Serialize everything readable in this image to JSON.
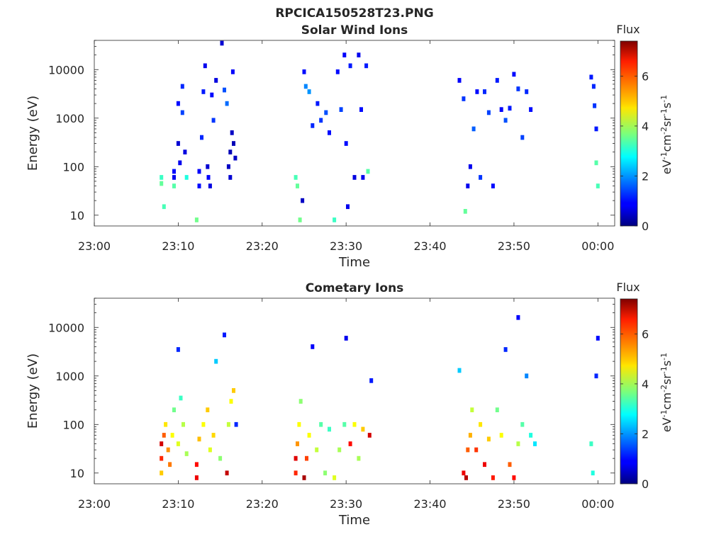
{
  "figure_title": "RPCICA150528T23.PNG",
  "colorbar": {
    "title": "Flux",
    "label_base": "eV",
    "label_sup1": "-1",
    "label_cm": "cm",
    "label_sup2": "-2",
    "label_sr": "sr",
    "label_sup3": "-1",
    "label_s": "s",
    "label_sup4": "-1",
    "range": [
      0,
      7.4
    ],
    "ticks": [
      "0",
      "2",
      "4",
      "6"
    ],
    "colormap": "jet"
  },
  "chart_data": [
    {
      "type": "heatmap",
      "title": "Solar Wind Ions",
      "xlabel": "Time",
      "ylabel": "Energy (eV)",
      "x_range": [
        "23:00",
        "00:02"
      ],
      "x_ticks": [
        "23:00",
        "23:10",
        "23:20",
        "23:30",
        "23:40",
        "23:50",
        "00:00"
      ],
      "y_scale": "log",
      "y_range": [
        6,
        40000
      ],
      "y_ticks": [
        "10",
        "100",
        "1000",
        "10000"
      ],
      "z_range": [
        0,
        7.4
      ],
      "active_intervals": [
        [
          "23:08",
          "23:17"
        ],
        [
          "23:24",
          "23:33"
        ],
        [
          "23:43",
          "23:53"
        ],
        [
          "23:59",
          "00:00"
        ]
      ],
      "dominant_flux": "low (0.3-2.5), blue; green/cyan patches up to ~3.5 below 100 eV",
      "cells": [
        [
          "23:08.0",
          60,
          3.2
        ],
        [
          "23:08.0",
          45,
          3.5
        ],
        [
          "23:08.3",
          15,
          3.3
        ],
        [
          "23:09.5",
          80,
          1.0
        ],
        [
          "23:09.5",
          60,
          0.8
        ],
        [
          "23:09.5",
          40,
          3.4
        ],
        [
          "23:10.0",
          2000,
          1.0
        ],
        [
          "23:10.0",
          300,
          0.6
        ],
        [
          "23:10.2",
          120,
          0.8
        ],
        [
          "23:10.5",
          4500,
          1.2
        ],
        [
          "23:10.5",
          1300,
          1.4
        ],
        [
          "23:10.8",
          200,
          0.7
        ],
        [
          "23:11.0",
          60,
          3.0
        ],
        [
          "23:12.2",
          8,
          3.6
        ],
        [
          "23:12.5",
          80,
          0.9
        ],
        [
          "23:12.5",
          40,
          1.0
        ],
        [
          "23:12.8",
          400,
          1.2
        ],
        [
          "23:13.0",
          3500,
          1.1
        ],
        [
          "23:13.2",
          12000,
          0.8
        ],
        [
          "23:13.5",
          100,
          0.6
        ],
        [
          "23:13.6",
          60,
          0.9
        ],
        [
          "23:13.8",
          40,
          0.7
        ],
        [
          "23:14.0",
          3000,
          1.0
        ],
        [
          "23:14.2",
          900,
          1.3
        ],
        [
          "23:14.5",
          6000,
          0.7
        ],
        [
          "23:15.2",
          35000,
          0.6
        ],
        [
          "23:15.5",
          3800,
          1.5
        ],
        [
          "23:15.8",
          2000,
          1.7
        ],
        [
          "23:16.0",
          100,
          0.5
        ],
        [
          "23:16.2",
          200,
          0.4
        ],
        [
          "23:16.4",
          500,
          0.5
        ],
        [
          "23:16.6",
          300,
          0.4
        ],
        [
          "23:16.8",
          150,
          0.5
        ],
        [
          "23:16.2",
          60,
          0.6
        ],
        [
          "23:16.5",
          9000,
          0.9
        ],
        [
          "23:24.0",
          60,
          3.3
        ],
        [
          "23:24.2",
          40,
          3.5
        ],
        [
          "23:24.5",
          8,
          3.6
        ],
        [
          "23:24.8",
          20,
          0.5
        ],
        [
          "23:25.0",
          9000,
          1.0
        ],
        [
          "23:25.2",
          4500,
          1.9
        ],
        [
          "23:25.6",
          3500,
          2.0
        ],
        [
          "23:26.0",
          700,
          1.2
        ],
        [
          "23:26.6",
          2000,
          1.1
        ],
        [
          "23:27.0",
          900,
          1.3
        ],
        [
          "23:27.6",
          1300,
          1.5
        ],
        [
          "23:28.0",
          500,
          1.0
        ],
        [
          "23:28.6",
          8,
          3.2
        ],
        [
          "23:29.0",
          9000,
          1.0
        ],
        [
          "23:29.4",
          1500,
          1.4
        ],
        [
          "23:29.8",
          20000,
          0.9
        ],
        [
          "23:30.0",
          300,
          1.0
        ],
        [
          "23:30.2",
          15,
          0.8
        ],
        [
          "23:30.5",
          12000,
          1.1
        ],
        [
          "23:31.0",
          60,
          0.7
        ],
        [
          "23:31.5",
          20000,
          0.8
        ],
        [
          "23:31.8",
          1500,
          1.0
        ],
        [
          "23:32.0",
          60,
          0.8
        ],
        [
          "23:32.4",
          12000,
          1.1
        ],
        [
          "23:32.6",
          80,
          3.4
        ],
        [
          "23:43.5",
          6000,
          0.9
        ],
        [
          "23:44.0",
          2500,
          1.3
        ],
        [
          "23:44.2",
          12,
          3.5
        ],
        [
          "23:44.5",
          40,
          0.8
        ],
        [
          "23:44.8",
          100,
          0.8
        ],
        [
          "23:45.2",
          600,
          1.6
        ],
        [
          "23:45.6",
          3500,
          1.0
        ],
        [
          "23:46.0",
          60,
          1.3
        ],
        [
          "23:46.5",
          3500,
          1.2
        ],
        [
          "23:47.0",
          1300,
          1.4
        ],
        [
          "23:47.5",
          40,
          1.0
        ],
        [
          "23:48.0",
          6000,
          1.1
        ],
        [
          "23:48.5",
          1500,
          0.9
        ],
        [
          "23:49.0",
          900,
          1.5
        ],
        [
          "23:49.5",
          1600,
          1.1
        ],
        [
          "23:50.0",
          8000,
          1.0
        ],
        [
          "23:50.5",
          4000,
          1.3
        ],
        [
          "23:51.0",
          400,
          1.4
        ],
        [
          "23:51.5",
          3500,
          1.2
        ],
        [
          "23:52.0",
          1500,
          1.0
        ],
        [
          "23:59.2",
          7000,
          1.1
        ],
        [
          "23:59.5",
          4500,
          1.2
        ],
        [
          "23:59.6",
          1800,
          1.3
        ],
        [
          "23:59.8",
          600,
          1.1
        ],
        [
          "23:59.8",
          120,
          3.4
        ],
        [
          "00:00.0",
          40,
          3.3
        ]
      ]
    },
    {
      "type": "heatmap",
      "title": "Cometary Ions",
      "xlabel": "Time",
      "ylabel": "Energy (eV)",
      "x_range": [
        "23:00",
        "00:02"
      ],
      "x_ticks": [
        "23:00",
        "23:10",
        "23:20",
        "23:30",
        "23:40",
        "23:50",
        "00:00"
      ],
      "y_scale": "log",
      "y_range": [
        6,
        40000
      ],
      "y_ticks": [
        "10",
        "100",
        "1000",
        "10000"
      ],
      "z_range": [
        0,
        7.4
      ],
      "active_intervals": [
        [
          "23:08",
          "23:17"
        ],
        [
          "23:24",
          "23:33"
        ],
        [
          "23:43",
          "23:53"
        ],
        [
          "23:59",
          "00:00"
        ]
      ],
      "dominant_flux": "high (4-7) below ~300 eV: yellow/orange/red columns; sparse cyan/blue above 300 eV",
      "cells": [
        [
          "23:08.0",
          10,
          5.0
        ],
        [
          "23:08.0",
          20,
          6.2
        ],
        [
          "23:08.0",
          40,
          6.8
        ],
        [
          "23:08.3",
          60,
          5.8
        ],
        [
          "23:08.5",
          100,
          4.8
        ],
        [
          "23:08.8",
          30,
          5.4
        ],
        [
          "23:09.0",
          15,
          5.6
        ],
        [
          "23:09.3",
          60,
          4.6
        ],
        [
          "23:09.5",
          200,
          3.6
        ],
        [
          "23:10.0",
          3500,
          1.2
        ],
        [
          "23:10.0",
          40,
          4.4
        ],
        [
          "23:10.3",
          350,
          3.2
        ],
        [
          "23:10.6",
          100,
          4.1
        ],
        [
          "23:11.0",
          25,
          4.0
        ],
        [
          "23:12.2",
          8,
          6.6
        ],
        [
          "23:12.2",
          15,
          6.4
        ],
        [
          "23:12.5",
          50,
          5.1
        ],
        [
          "23:13.0",
          100,
          4.6
        ],
        [
          "23:13.5",
          200,
          5.0
        ],
        [
          "23:13.8",
          30,
          4.4
        ],
        [
          "23:14.2",
          60,
          4.9
        ],
        [
          "23:14.5",
          2000,
          2.4
        ],
        [
          "23:15.0",
          20,
          3.8
        ],
        [
          "23:15.5",
          7000,
          1.1
        ],
        [
          "23:15.8",
          10,
          6.9
        ],
        [
          "23:16.0",
          100,
          4.2
        ],
        [
          "23:16.3",
          300,
          4.6
        ],
        [
          "23:16.6",
          500,
          5.0
        ],
        [
          "23:16.9",
          100,
          1.2
        ],
        [
          "23:24.0",
          10,
          6.2
        ],
        [
          "23:24.0",
          20,
          6.7
        ],
        [
          "23:24.2",
          40,
          5.4
        ],
        [
          "23:24.4",
          100,
          4.6
        ],
        [
          "23:24.6",
          300,
          3.8
        ],
        [
          "23:25.0",
          8,
          7.1
        ],
        [
          "23:25.3",
          20,
          6.0
        ],
        [
          "23:25.6",
          60,
          4.6
        ],
        [
          "23:26.0",
          4000,
          0.9
        ],
        [
          "23:26.5",
          30,
          4.2
        ],
        [
          "23:27.0",
          100,
          3.4
        ],
        [
          "23:27.5",
          10,
          3.8
        ],
        [
          "23:28.0",
          80,
          3.2
        ],
        [
          "23:28.6",
          8,
          4.4
        ],
        [
          "23:29.2",
          30,
          4.0
        ],
        [
          "23:29.8",
          100,
          3.4
        ],
        [
          "23:30.0",
          6000,
          0.8
        ],
        [
          "23:30.5",
          40,
          6.4
        ],
        [
          "23:31.0",
          100,
          4.6
        ],
        [
          "23:31.5",
          20,
          4.0
        ],
        [
          "23:32.0",
          80,
          5.0
        ],
        [
          "23:32.8",
          60,
          6.8
        ],
        [
          "23:33.0",
          800,
          1.1
        ],
        [
          "23:43.5",
          1300,
          2.4
        ],
        [
          "23:44.0",
          10,
          6.6
        ],
        [
          "23:44.3",
          8,
          7.0
        ],
        [
          "23:44.5",
          30,
          5.8
        ],
        [
          "23:44.8",
          60,
          5.2
        ],
        [
          "23:45.0",
          200,
          4.2
        ],
        [
          "23:45.5",
          30,
          6.1
        ],
        [
          "23:46.0",
          100,
          4.8
        ],
        [
          "23:46.5",
          15,
          6.6
        ],
        [
          "23:47.0",
          50,
          5.0
        ],
        [
          "23:47.5",
          8,
          6.3
        ],
        [
          "23:48.0",
          200,
          3.6
        ],
        [
          "23:48.5",
          60,
          4.6
        ],
        [
          "23:49.0",
          3500,
          1.2
        ],
        [
          "23:49.5",
          15,
          5.8
        ],
        [
          "23:50.0",
          8,
          6.4
        ],
        [
          "23:50.5",
          40,
          4.1
        ],
        [
          "23:51.0",
          100,
          3.4
        ],
        [
          "23:51.5",
          1000,
          1.9
        ],
        [
          "23:52.0",
          60,
          3.0
        ],
        [
          "23:52.5",
          40,
          2.6
        ],
        [
          "23:50.5",
          16000,
          0.9
        ],
        [
          "23:59.2",
          40,
          3.2
        ],
        [
          "23:59.4",
          10,
          3.0
        ],
        [
          "23:59.8",
          1000,
          1.2
        ],
        [
          "00:00.0",
          6000,
          1.0
        ]
      ]
    }
  ]
}
